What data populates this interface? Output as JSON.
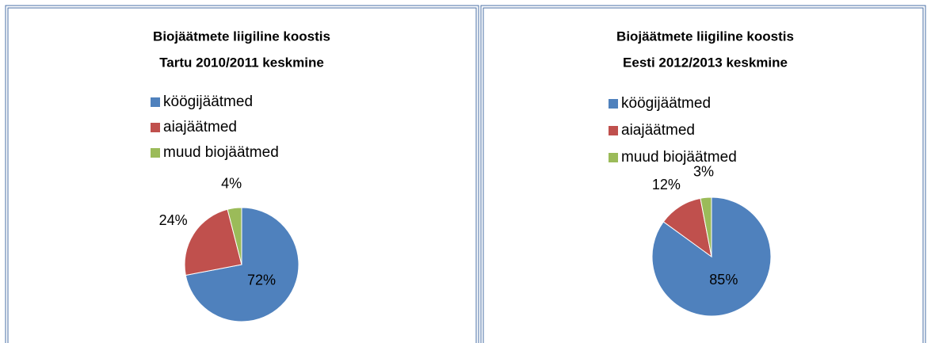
{
  "chart_data": [
    {
      "type": "pie",
      "title": "Biojäätmete liigiline koostis",
      "subtitle": "Tartu 2010/2011 keskmine",
      "categories": [
        "köögijäätmed",
        "aiajäätmed",
        "muud biojäätmed"
      ],
      "values": [
        72,
        24,
        4
      ],
      "value_labels": [
        "72%",
        "24%",
        "4%"
      ],
      "colors": [
        "#4f81bd",
        "#c0504d",
        "#9bbb59"
      ]
    },
    {
      "type": "pie",
      "title": "Biojäätmete liigiline koostis",
      "subtitle": "Eesti 2012/2013 keskmine",
      "categories": [
        "köögijäätmed",
        "aiajäätmed",
        "muud biojäätmed"
      ],
      "values": [
        85,
        12,
        3
      ],
      "value_labels": [
        "85%",
        "12%",
        "3%"
      ],
      "colors": [
        "#4f81bd",
        "#c0504d",
        "#9bbb59"
      ]
    }
  ]
}
